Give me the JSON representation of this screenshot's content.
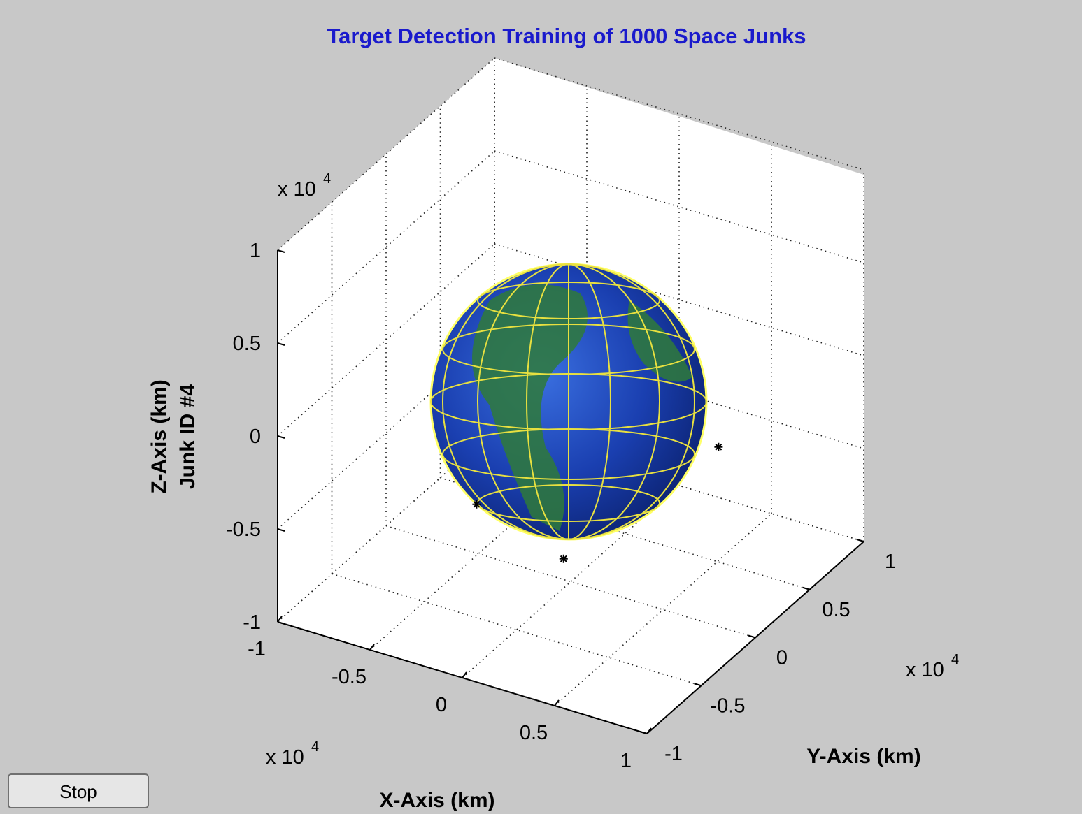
{
  "chart_data": {
    "type": "scatter3d",
    "title": "Target Detection Training of 1000 Space Junks",
    "xlabel": "X-Axis (km)",
    "ylabel": "Y-Axis (km)",
    "zlabel": [
      "Z-Axis (km)",
      "Junk ID #4"
    ],
    "axis_multiplier": {
      "base": "x 10",
      "exponent": "4"
    },
    "xlim": [
      -1,
      1
    ],
    "ylim": [
      -1,
      1
    ],
    "zlim": [
      -1,
      1
    ],
    "xticks": [
      -1,
      -0.5,
      0,
      0.5,
      1
    ],
    "yticks": [
      -1,
      -0.5,
      0,
      0.5,
      1
    ],
    "zticks": [
      -1,
      -0.5,
      0,
      0.5,
      1
    ],
    "grid": true,
    "marker_color": "#000000",
    "points": {
      "x": [
        0.83,
        -0.14,
        0.29
      ],
      "y": [
        -0.05,
        -0.63,
        -0.56
      ],
      "z": [
        0,
        -0.3,
        -0.5
      ]
    }
  },
  "button": "Stop"
}
